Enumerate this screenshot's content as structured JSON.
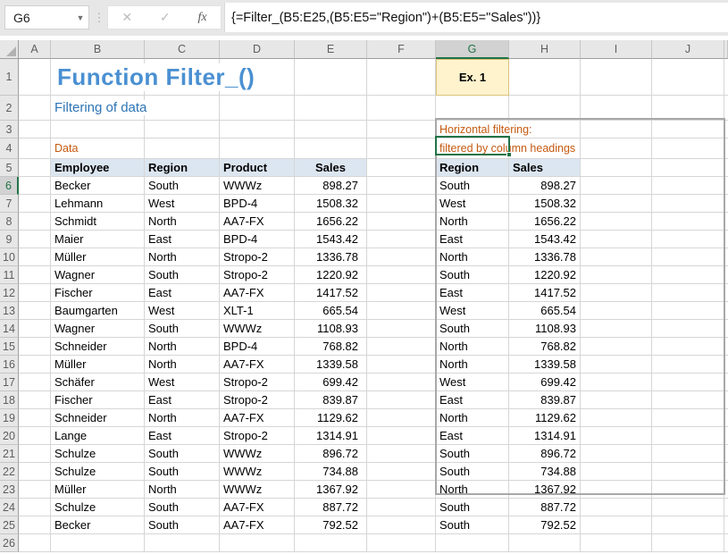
{
  "formula_bar": {
    "name_box_value": "G6",
    "cancel_icon": "✕",
    "enter_icon": "✓",
    "fx_icon": "fx",
    "formula": "{=Filter_(B5:E25,(B5:E5=\"Region\")+(B5:E5=\"Sales\"))}"
  },
  "grid": {
    "column_letters": [
      "A",
      "B",
      "C",
      "D",
      "E",
      "F",
      "G",
      "H",
      "I",
      "J"
    ],
    "row_numbers": [
      "1",
      "2",
      "3",
      "4",
      "5",
      "6",
      "7",
      "8",
      "9",
      "10",
      "11",
      "12",
      "13",
      "14",
      "15",
      "16",
      "17",
      "18",
      "19",
      "20",
      "21",
      "22",
      "23",
      "24",
      "25",
      "26"
    ],
    "selected_column": "G",
    "selected_row": "6",
    "selected_cell": "G6"
  },
  "content": {
    "title": "Function Filter_()",
    "subtitle": "Filtering of data",
    "data_label": "Data",
    "example_label": "Ex. 1",
    "note_line1": "Horizontal filtering:",
    "note_line2": "filtered by column headings"
  },
  "source_table": {
    "headers": [
      "Employee",
      "Region",
      "Product",
      "Sales"
    ],
    "rows": [
      [
        "Becker",
        "South",
        "WWWz",
        "898.27"
      ],
      [
        "Lehmann",
        "West",
        "BPD-4",
        "1508.32"
      ],
      [
        "Schmidt",
        "North",
        "AA7-FX",
        "1656.22"
      ],
      [
        "Maier",
        "East",
        "BPD-4",
        "1543.42"
      ],
      [
        "Müller",
        "North",
        "Stropo-2",
        "1336.78"
      ],
      [
        "Wagner",
        "South",
        "Stropo-2",
        "1220.92"
      ],
      [
        "Fischer",
        "East",
        "AA7-FX",
        "1417.52"
      ],
      [
        "Baumgarten",
        "West",
        "XLT-1",
        "665.54"
      ],
      [
        "Wagner",
        "South",
        "WWWz",
        "1108.93"
      ],
      [
        "Schneider",
        "North",
        "BPD-4",
        "768.82"
      ],
      [
        "Müller",
        "North",
        "AA7-FX",
        "1339.58"
      ],
      [
        "Schäfer",
        "West",
        "Stropo-2",
        "699.42"
      ],
      [
        "Fischer",
        "East",
        "Stropo-2",
        "839.87"
      ],
      [
        "Schneider",
        "North",
        "AA7-FX",
        "1129.62"
      ],
      [
        "Lange",
        "East",
        "Stropo-2",
        "1314.91"
      ],
      [
        "Schulze",
        "South",
        "WWWz",
        "896.72"
      ],
      [
        "Schulze",
        "South",
        "WWWz",
        "734.88"
      ],
      [
        "Müller",
        "North",
        "WWWz",
        "1367.92"
      ],
      [
        "Schulze",
        "South",
        "AA7-FX",
        "887.72"
      ],
      [
        "Becker",
        "South",
        "AA7-FX",
        "792.52"
      ]
    ]
  },
  "result_table": {
    "headers": [
      "Region",
      "Sales"
    ],
    "rows": [
      [
        "South",
        "898.27"
      ],
      [
        "West",
        "1508.32"
      ],
      [
        "North",
        "1656.22"
      ],
      [
        "East",
        "1543.42"
      ],
      [
        "North",
        "1336.78"
      ],
      [
        "South",
        "1220.92"
      ],
      [
        "East",
        "1417.52"
      ],
      [
        "West",
        "665.54"
      ],
      [
        "South",
        "1108.93"
      ],
      [
        "North",
        "768.82"
      ],
      [
        "North",
        "1339.58"
      ],
      [
        "West",
        "699.42"
      ],
      [
        "East",
        "839.87"
      ],
      [
        "North",
        "1129.62"
      ],
      [
        "East",
        "1314.91"
      ],
      [
        "South",
        "896.72"
      ],
      [
        "South",
        "734.88"
      ],
      [
        "North",
        "1367.92"
      ],
      [
        "South",
        "887.72"
      ],
      [
        "South",
        "792.52"
      ]
    ]
  },
  "colors": {
    "title_blue": "#4A90D2",
    "subtitle_blue": "#2E75B6",
    "label_orange": "#C55A11",
    "table_header_fill": "#DCE6F1",
    "example_fill": "#FEF3CD",
    "example_border": "#DCC17A",
    "selection_green": "#217346",
    "array_range_border": "#A8A8A8"
  }
}
